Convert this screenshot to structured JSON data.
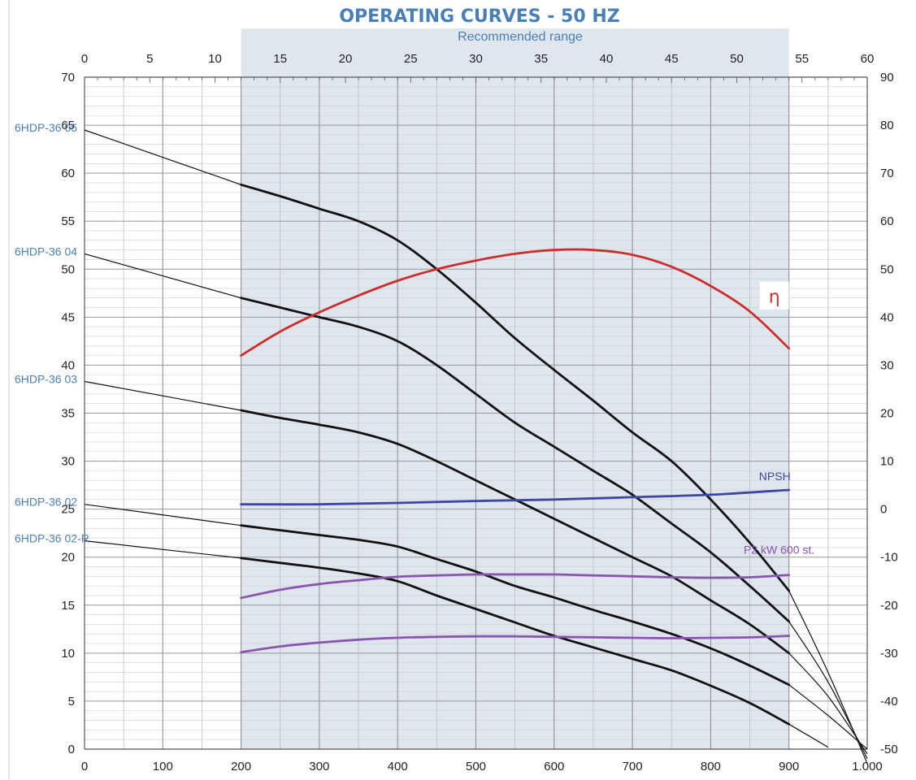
{
  "chart_data": {
    "type": "line",
    "title": "OPERATING CURVES - 50 HZ",
    "subtitle": "Recommended range",
    "recommended_range": [
      200,
      900
    ],
    "x_bottom": {
      "ticks": [
        "0",
        "100",
        "200",
        "300",
        "400",
        "500",
        "600",
        "700",
        "800",
        "900",
        "1.000"
      ],
      "range": [
        0,
        1000
      ]
    },
    "x_top": {
      "ticks": [
        "0",
        "5",
        "10",
        "15",
        "20",
        "25",
        "30",
        "35",
        "40",
        "45",
        "50",
        "55",
        "60"
      ],
      "range": [
        0,
        60
      ]
    },
    "y_left": {
      "ticks": [
        "0",
        "5",
        "10",
        "15",
        "20",
        "25",
        "30",
        "35",
        "40",
        "45",
        "50",
        "55",
        "60",
        "65",
        "70"
      ],
      "range": [
        0,
        70
      ]
    },
    "y_right": {
      "ticks": [
        "-50",
        "-40",
        "-30",
        "-20",
        "-10",
        "0",
        "10",
        "20",
        "30",
        "40",
        "50",
        "60",
        "70",
        "80",
        "90"
      ],
      "range": [
        -50,
        90
      ]
    },
    "grid": true,
    "series": [
      {
        "name": "6HDP-36 05",
        "axis": "left",
        "color": "#111111",
        "x": [
          200,
          250,
          300,
          350,
          400,
          450,
          500,
          550,
          600,
          650,
          700,
          750,
          800,
          850,
          900
        ],
        "y": [
          58.8,
          57.6,
          56.3,
          55.0,
          53.0,
          50.0,
          46.5,
          42.8,
          39.5,
          36.3,
          33.0,
          30.0,
          26.0,
          21.5,
          16.5
        ],
        "ext_before": {
          "x": [
            0,
            200
          ],
          "y": [
            64.5,
            58.8
          ]
        },
        "ext_after": {
          "x": [
            900,
            950,
            1000
          ],
          "y": [
            16.5,
            8.0,
            -1.5
          ]
        }
      },
      {
        "name": "6HDP-36 04",
        "axis": "left",
        "color": "#111111",
        "x": [
          200,
          250,
          300,
          350,
          400,
          450,
          500,
          550,
          600,
          650,
          700,
          750,
          800,
          850,
          900
        ],
        "y": [
          47.0,
          46.0,
          45.0,
          44.0,
          42.5,
          40.0,
          37.0,
          34.0,
          31.5,
          29.0,
          26.5,
          23.5,
          20.5,
          17.0,
          13.3
        ],
        "ext_before": {
          "x": [
            0,
            200
          ],
          "y": [
            51.6,
            47.0
          ]
        },
        "ext_after": {
          "x": [
            900,
            950,
            1000
          ],
          "y": [
            13.3,
            7.0,
            -1.0
          ]
        }
      },
      {
        "name": "6HDP-36 03",
        "axis": "left",
        "color": "#111111",
        "x": [
          200,
          250,
          300,
          350,
          400,
          450,
          500,
          550,
          600,
          650,
          700,
          750,
          800,
          850,
          900
        ],
        "y": [
          35.3,
          34.5,
          33.8,
          33.0,
          31.8,
          30.0,
          28.0,
          26.0,
          24.0,
          22.0,
          20.0,
          18.0,
          15.5,
          13.0,
          10.0
        ],
        "ext_before": {
          "x": [
            0,
            200
          ],
          "y": [
            38.3,
            35.3
          ]
        },
        "ext_after": {
          "x": [
            900,
            950,
            1000
          ],
          "y": [
            10.0,
            5.5,
            -0.5
          ]
        }
      },
      {
        "name": "6HDP-36 02",
        "axis": "left",
        "color": "#111111",
        "x": [
          200,
          250,
          300,
          350,
          400,
          450,
          500,
          550,
          600,
          650,
          700,
          750,
          800,
          850,
          900
        ],
        "y": [
          23.3,
          22.8,
          22.3,
          21.8,
          21.1,
          19.8,
          18.5,
          17.0,
          15.8,
          14.5,
          13.3,
          12.0,
          10.5,
          8.7,
          6.7
        ],
        "ext_before": {
          "x": [
            0,
            200
          ],
          "y": [
            25.5,
            23.3
          ]
        },
        "ext_after": {
          "x": [
            900,
            950,
            1000
          ],
          "y": [
            6.7,
            3.5,
            0.0
          ]
        }
      },
      {
        "name": "6HDP-36 02-R",
        "axis": "left",
        "color": "#111111",
        "x": [
          200,
          250,
          300,
          350,
          400,
          450,
          500,
          550,
          600,
          650,
          700,
          750,
          800,
          850,
          900
        ],
        "y": [
          19.9,
          19.4,
          18.9,
          18.3,
          17.5,
          16.0,
          14.6,
          13.2,
          11.8,
          10.6,
          9.4,
          8.2,
          6.6,
          4.8,
          2.6
        ],
        "ext_before": {
          "x": [
            0,
            200
          ],
          "y": [
            21.7,
            19.9
          ]
        },
        "ext_after": {
          "x": [
            900,
            950
          ],
          "y": [
            2.6,
            0.2
          ]
        }
      },
      {
        "name": "η",
        "axis": "right",
        "color": "#cc2e2e",
        "x": [
          200,
          250,
          300,
          350,
          400,
          450,
          500,
          550,
          600,
          650,
          700,
          750,
          800,
          850,
          900
        ],
        "y": [
          32,
          37,
          41,
          44.5,
          47.6,
          50.0,
          51.8,
          53.2,
          54.0,
          54.0,
          53.0,
          50.5,
          46.5,
          41.2,
          33.5
        ]
      },
      {
        "name": "NPSH",
        "axis": "right",
        "color": "#3c46a5",
        "x": [
          200,
          300,
          400,
          500,
          600,
          700,
          800,
          900
        ],
        "y": [
          1.0,
          1.0,
          1.3,
          1.7,
          2.0,
          2.5,
          3.0,
          4.0
        ]
      },
      {
        "name": "P2 kW 600 st.",
        "axis": "right",
        "color": "#8a55b0",
        "x": [
          200,
          250,
          300,
          350,
          400,
          450,
          500,
          550,
          600,
          650,
          700,
          750,
          800,
          850,
          900
        ],
        "y": [
          -18.5,
          -16.8,
          -15.6,
          -14.8,
          -14.1,
          -13.8,
          -13.6,
          -13.6,
          -13.6,
          -13.8,
          -14.0,
          -14.2,
          -14.3,
          -14.2,
          -13.7
        ]
      },
      {
        "name": "",
        "axis": "right",
        "color": "#8a55b0",
        "x": [
          200,
          250,
          300,
          350,
          400,
          450,
          500,
          550,
          600,
          650,
          700,
          750,
          800,
          850,
          900
        ],
        "y": [
          -29.8,
          -28.6,
          -27.8,
          -27.2,
          -26.8,
          -26.6,
          -26.5,
          -26.5,
          -26.6,
          -26.7,
          -26.8,
          -26.9,
          -26.8,
          -26.7,
          -26.4
        ]
      }
    ],
    "eta_symbol": "η"
  }
}
